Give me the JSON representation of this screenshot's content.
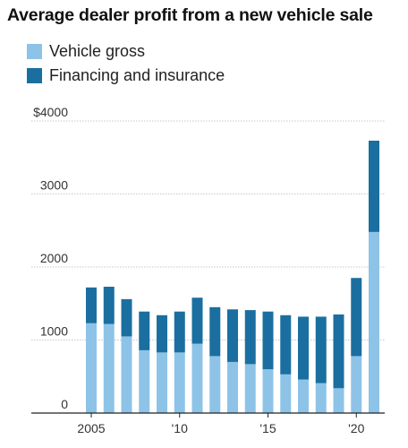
{
  "chart_data": {
    "type": "bar",
    "stacked": true,
    "title": "Average dealer profit from a new vehicle sale",
    "xlabel": "",
    "ylabel": "",
    "categories": [
      "2005",
      "2006",
      "2007",
      "2008",
      "2009",
      "2010",
      "2011",
      "2012",
      "2013",
      "2014",
      "2015",
      "2016",
      "2017",
      "2018",
      "2019",
      "2020",
      "2021"
    ],
    "x_tick_labels": [
      {
        "category": "2005",
        "label": "2005"
      },
      {
        "category": "2010",
        "label": "'10"
      },
      {
        "category": "2015",
        "label": "'15"
      },
      {
        "category": "2020",
        "label": "'20"
      }
    ],
    "series": [
      {
        "name": "Vehicle gross",
        "color": "#8ec3e8",
        "values": [
          1230,
          1220,
          1050,
          860,
          830,
          830,
          950,
          780,
          700,
          670,
          600,
          530,
          460,
          410,
          340,
          780,
          2480
        ]
      },
      {
        "name": "Financing and insurance",
        "color": "#1a6fa0",
        "values": [
          490,
          510,
          510,
          530,
          510,
          560,
          630,
          670,
          720,
          740,
          790,
          810,
          860,
          910,
          1010,
          1070,
          1250
        ]
      }
    ],
    "y_ticks": [
      {
        "value": 0,
        "label": "0"
      },
      {
        "value": 1000,
        "label": "1000"
      },
      {
        "value": 2000,
        "label": "2000"
      },
      {
        "value": 3000,
        "label": "3000"
      },
      {
        "value": 4000,
        "label": "$4000"
      }
    ],
    "ylim": [
      0,
      4000
    ],
    "grid": true,
    "legend_position": "top-left"
  }
}
